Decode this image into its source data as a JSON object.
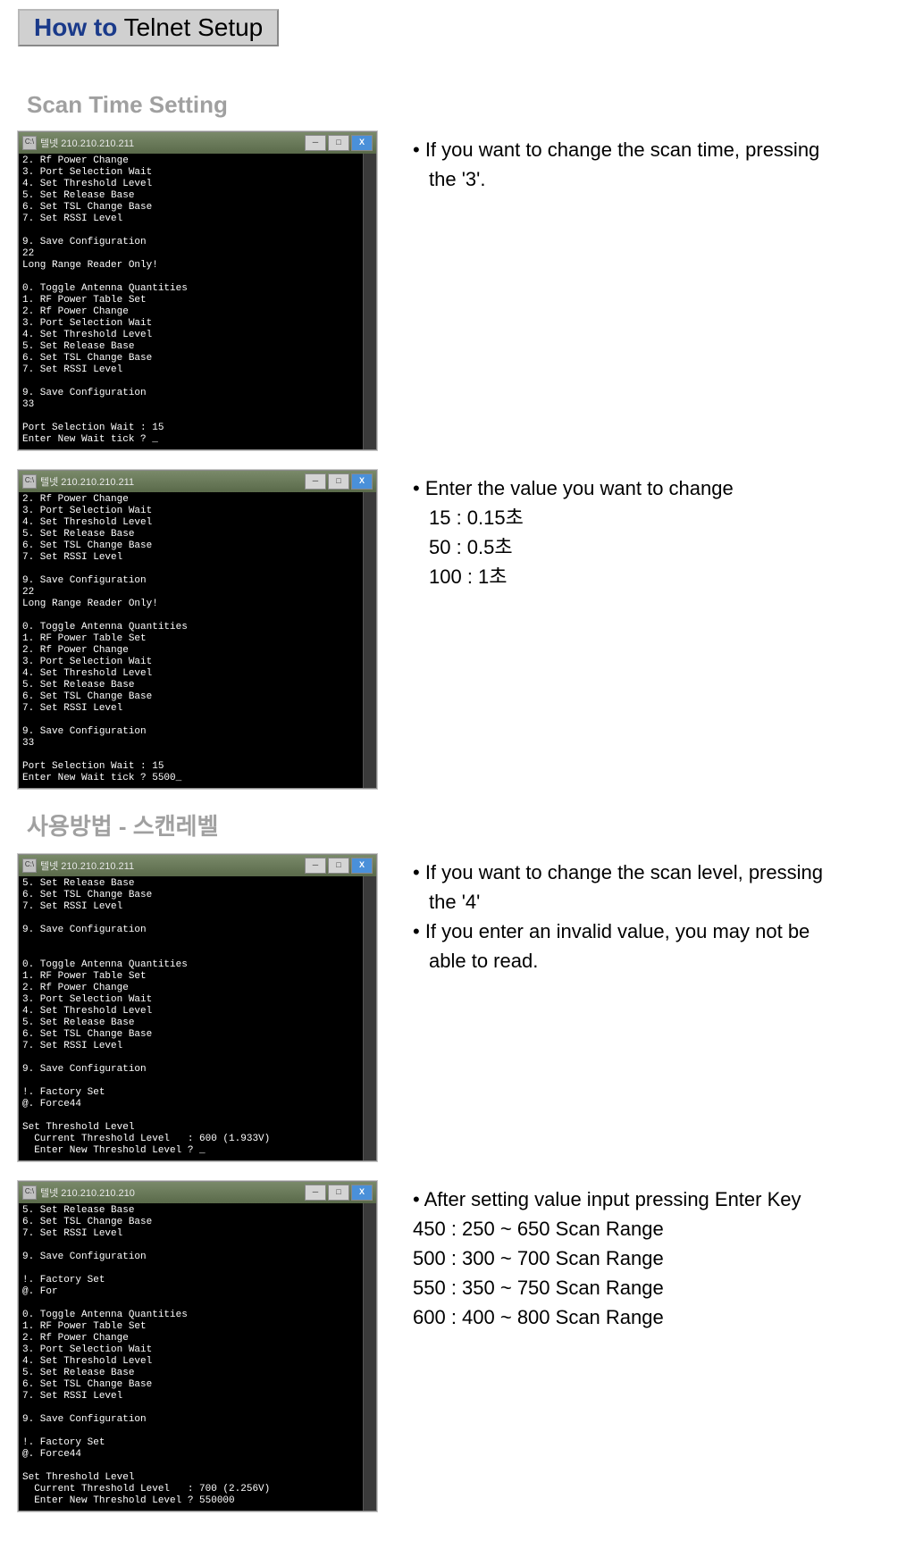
{
  "title": {
    "howto": "How to",
    "rest": " Telnet Setup"
  },
  "section1_heading": "Scan Time Setting",
  "section2_heading": "사용방법 - 스캔레벨",
  "terminal1": {
    "title_ip": "텔넷 210.210.210.211",
    "icon_label": "C:\\",
    "min": "─",
    "max": "□",
    "close": "X",
    "lines": "2. Rf Power Change\n3. Port Selection Wait\n4. Set Threshold Level\n5. Set Release Base\n6. Set TSL Change Base\n7. Set RSSI Level\n\n9. Save Configuration\n22\nLong Range Reader Only!\n\n0. Toggle Antenna Quantities\n1. RF Power Table Set\n2. Rf Power Change\n3. Port Selection Wait\n4. Set Threshold Level\n5. Set Release Base\n6. Set TSL Change Base\n7. Set RSSI Level\n\n9. Save Configuration\n33\n\nPort Selection Wait : 15\nEnter New Wait tick ? _"
  },
  "desc1": {
    "l1": "• If you want to change the scan time, pressing",
    "l2": "the '3'."
  },
  "terminal2": {
    "title_ip": "텔넷 210.210.210.211",
    "icon_label": "C:\\",
    "min": "─",
    "max": "□",
    "close": "X",
    "lines": "2. Rf Power Change\n3. Port Selection Wait\n4. Set Threshold Level\n5. Set Release Base\n6. Set TSL Change Base\n7. Set RSSI Level\n\n9. Save Configuration\n22\nLong Range Reader Only!\n\n0. Toggle Antenna Quantities\n1. RF Power Table Set\n2. Rf Power Change\n3. Port Selection Wait\n4. Set Threshold Level\n5. Set Release Base\n6. Set TSL Change Base\n7. Set RSSI Level\n\n9. Save Configuration\n33\n\nPort Selection Wait : 15\nEnter New Wait tick ? 5500_"
  },
  "desc2": {
    "l1": "• Enter the value you want to change",
    "l2": "15 : 0.15초",
    "l3": "50 : 0.5초",
    "l4": "100 : 1초"
  },
  "terminal3": {
    "title_ip": "텔넷 210.210.210.211",
    "icon_label": "C:\\",
    "min": "─",
    "max": "□",
    "close": "X",
    "lines": "5. Set Release Base\n6. Set TSL Change Base\n7. Set RSSI Level\n\n9. Save Configuration\n\n\n0. Toggle Antenna Quantities\n1. RF Power Table Set\n2. Rf Power Change\n3. Port Selection Wait\n4. Set Threshold Level\n5. Set Release Base\n6. Set TSL Change Base\n7. Set RSSI Level\n\n9. Save Configuration\n\n!. Factory Set\n@. Force44\n\nSet Threshold Level\n  Current Threshold Level   : 600 (1.933V)\n  Enter New Threshold Level ? _"
  },
  "desc3": {
    "l1": "• If you want to change the scan level, pressing",
    "l2": "the '4'",
    "l3": "• If you enter an invalid value, you may not be",
    "l4": "able to read."
  },
  "terminal4": {
    "title_ip": "텔넷 210.210.210.210",
    "icon_label": "C:\\",
    "min": "─",
    "max": "□",
    "close": "X",
    "lines": "5. Set Release Base\n6. Set TSL Change Base\n7. Set RSSI Level\n\n9. Save Configuration\n\n!. Factory Set\n@. For\n\n0. Toggle Antenna Quantities\n1. RF Power Table Set\n2. Rf Power Change\n3. Port Selection Wait\n4. Set Threshold Level\n5. Set Release Base\n6. Set TSL Change Base\n7. Set RSSI Level\n\n9. Save Configuration\n\n!. Factory Set\n@. Force44\n\nSet Threshold Level\n  Current Threshold Level   : 700 (2.256V)\n  Enter New Threshold Level ? 550000"
  },
  "desc4": {
    "l1": "• After setting value input pressing Enter Key",
    "l2": "450 : 250 ~ 650 Scan Range",
    "l3": "500 : 300 ~ 700 Scan Range",
    "l4": "550 : 350 ~ 750 Scan Range",
    "l5": "600 : 400 ~ 800 Scan Range"
  }
}
